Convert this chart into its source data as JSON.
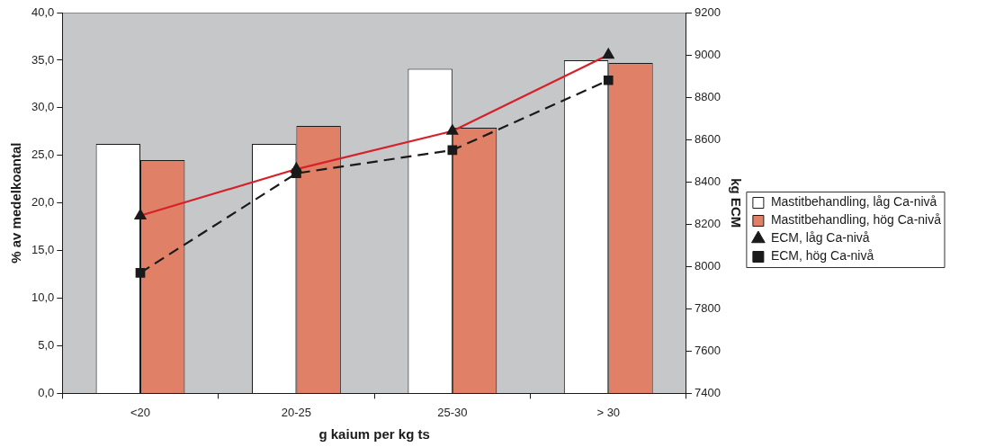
{
  "chart_data": {
    "type": "bar",
    "xlabel": "g kaium per kg ts",
    "ylabel": "% av medelkoantal",
    "y2label": "kg ECM",
    "categories": [
      "<20",
      "20-25",
      "25-30",
      "> 30"
    ],
    "series": [
      {
        "name": "Mastitbehandling, låg Ca-nivå",
        "color": "#ffffff",
        "values": [
          26.2,
          26.2,
          34.1,
          35.0
        ]
      },
      {
        "name": "Mastitbehandling, hög Ca-nivå",
        "color": "#e08066",
        "values": [
          24.5,
          28.1,
          27.9,
          34.7
        ]
      },
      {
        "name": "ECM, låg Ca-nivå",
        "type": "line",
        "axis": "y2",
        "color": "#d7202a",
        "marker": "triangle",
        "line_style": "solid",
        "values": [
          8240,
          8460,
          8640,
          9000
        ]
      },
      {
        "name": "ECM, hög Ca-nivå",
        "type": "line",
        "axis": "y2",
        "color": "#1a1a1a",
        "marker": "square",
        "line_style": "dashed",
        "values": [
          7970,
          8440,
          8550,
          8880
        ]
      }
    ],
    "ylim": [
      0,
      40
    ],
    "yticks": [
      {
        "value": 0,
        "label": "0,0"
      },
      {
        "value": 5,
        "label": "5,0"
      },
      {
        "value": 10,
        "label": "10,0"
      },
      {
        "value": 15,
        "label": "15,0"
      },
      {
        "value": 20,
        "label": "20,0"
      },
      {
        "value": 25,
        "label": "25,0"
      },
      {
        "value": 30,
        "label": "30,0"
      },
      {
        "value": 35,
        "label": "35,0"
      },
      {
        "value": 40,
        "label": "40,0"
      }
    ],
    "y2lim": [
      7400,
      9200
    ],
    "y2ticks": [
      7400,
      7600,
      7800,
      8000,
      8200,
      8400,
      8600,
      8800,
      9000,
      9200
    ],
    "grid": false,
    "legend": "right"
  }
}
